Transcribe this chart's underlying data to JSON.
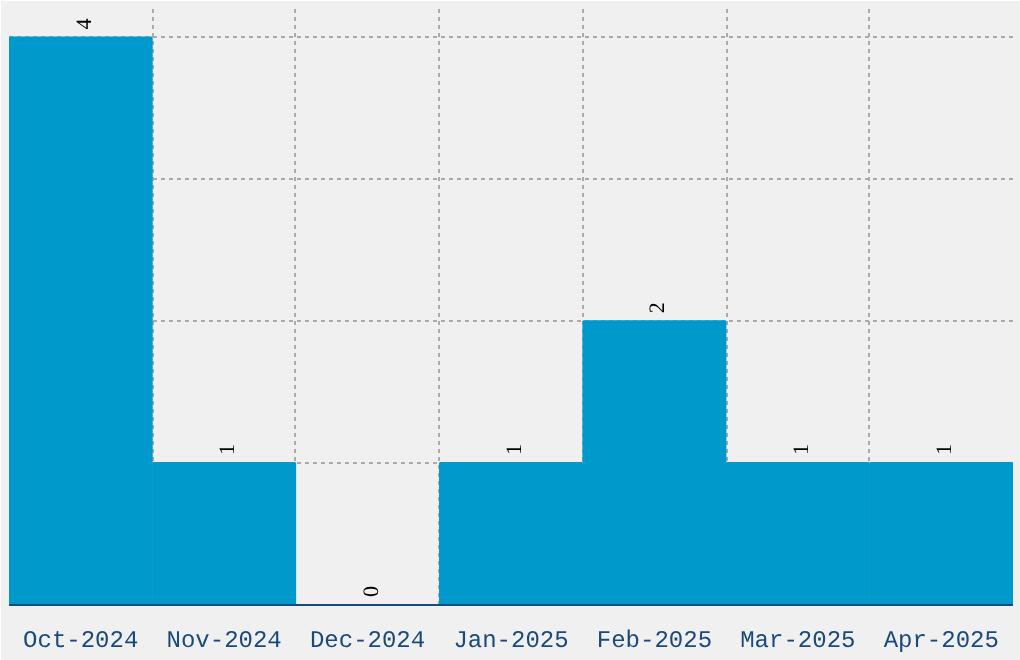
{
  "chart_data": {
    "type": "bar",
    "categories": [
      "Oct-2024",
      "Nov-2024",
      "Dec-2024",
      "Jan-2025",
      "Feb-2025",
      "Mar-2025",
      "Apr-2025"
    ],
    "values": [
      4,
      1,
      0,
      1,
      2,
      1,
      1
    ],
    "color": "#0099cc",
    "data_labels": true,
    "grid": true,
    "tick_labels": "x"
  }
}
